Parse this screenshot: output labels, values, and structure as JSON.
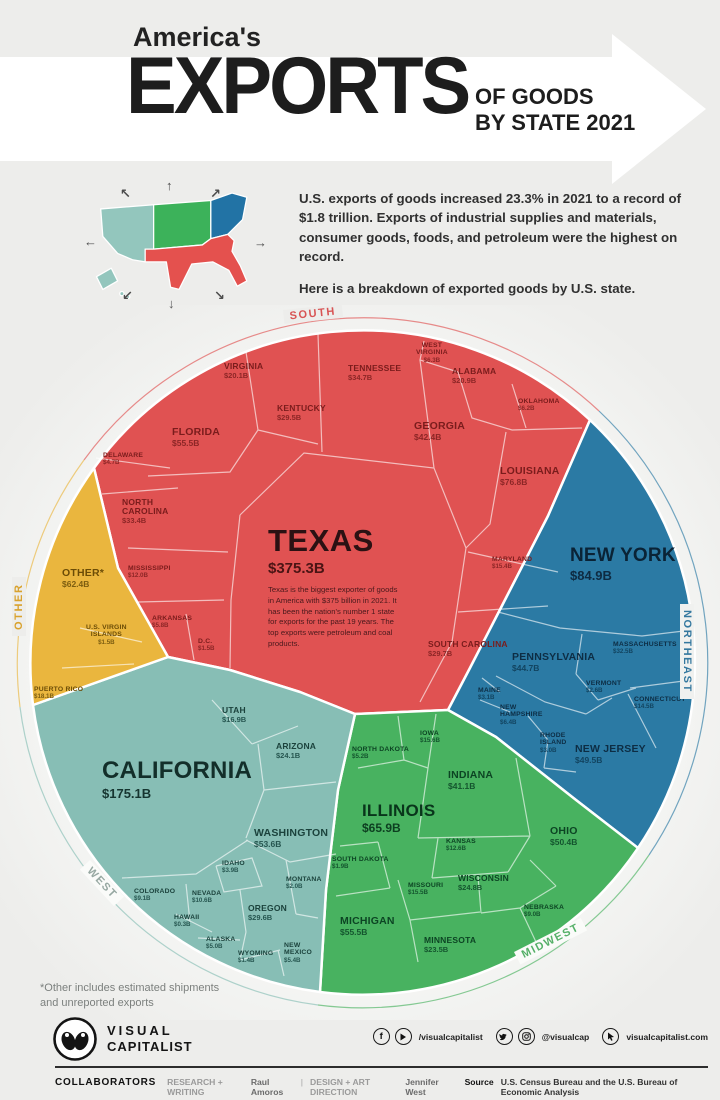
{
  "header": {
    "kicker": "America's",
    "title": "EXPORTS",
    "subtitle_line1": "OF GOODS",
    "subtitle_line2": "BY STATE 2021"
  },
  "intro": {
    "paragraph1": "U.S. exports of goods increased 23.3% in 2021 to a record of $1.8 trillion. Exports of industrial supplies and materials, consumer goods, foods, and petroleum were the highest on record.",
    "paragraph2": "Here is a breakdown of exported goods by U.S. state."
  },
  "chart_data": {
    "type": "pie",
    "variant": "circular voronoi treemap",
    "title": "America's Exports of Goods by State 2021",
    "unit": "USD billions",
    "total_label": "$1.8 trillion",
    "regions": [
      {
        "name": "SOUTH",
        "color": "#e05252",
        "states": [
          {
            "name": "TEXAS",
            "value": "$375.3B",
            "value_b": 375.3,
            "note": "Texas is the biggest exporter of goods in America with $375 billion in 2021. It has been the nation's number 1 state for exports for the past 19 years. The top exports were petroleum and coal products."
          },
          {
            "name": "LOUISIANA",
            "value": "$76.8B",
            "value_b": 76.8
          },
          {
            "name": "FLORIDA",
            "value": "$55.5B",
            "value_b": 55.5
          },
          {
            "name": "GEORGIA",
            "value": "$42.4B",
            "value_b": 42.4
          },
          {
            "name": "TENNESSEE",
            "value": "$34.7B",
            "value_b": 34.7
          },
          {
            "name": "NORTH CAROLINA",
            "value": "$33.4B",
            "value_b": 33.4
          },
          {
            "name": "SOUTH CAROLINA",
            "value": "$29.7B",
            "value_b": 29.7
          },
          {
            "name": "KENTUCKY",
            "value": "$29.5B",
            "value_b": 29.5
          },
          {
            "name": "ALABAMA",
            "value": "$20.9B",
            "value_b": 20.9
          },
          {
            "name": "VIRGINIA",
            "value": "$20.1B",
            "value_b": 20.1
          },
          {
            "name": "MARYLAND",
            "value": "$15.4B",
            "value_b": 15.4
          },
          {
            "name": "MISSISSIPPI",
            "value": "$12.0B",
            "value_b": 12.0
          },
          {
            "name": "WEST VIRGINIA",
            "value": "$6.3B",
            "value_b": 6.3
          },
          {
            "name": "OKLAHOMA",
            "value": "$6.2B",
            "value_b": 6.2
          },
          {
            "name": "ARKANSAS",
            "value": "$5.8B",
            "value_b": 5.8
          },
          {
            "name": "DELAWARE",
            "value": "$4.7B",
            "value_b": 4.7
          },
          {
            "name": "D.C.",
            "value": "$1.5B",
            "value_b": 1.5
          }
        ]
      },
      {
        "name": "NORTHEAST",
        "color": "#2b7aa4",
        "states": [
          {
            "name": "NEW YORK",
            "value": "$84.9B",
            "value_b": 84.9
          },
          {
            "name": "NEW JERSEY",
            "value": "$49.5B",
            "value_b": 49.5
          },
          {
            "name": "PENNSYLVANIA",
            "value": "$44.7B",
            "value_b": 44.7
          },
          {
            "name": "MASSACHUSETTS",
            "value": "$32.5B",
            "value_b": 32.5
          },
          {
            "name": "CONNECTICUT",
            "value": "$14.5B",
            "value_b": 14.5
          },
          {
            "name": "NEW HAMPSHIRE",
            "value": "$6.4B",
            "value_b": 6.4
          },
          {
            "name": "MAINE",
            "value": "$3.1B",
            "value_b": 3.1
          },
          {
            "name": "RHODE ISLAND",
            "value": "$3.0B",
            "value_b": 3.0
          },
          {
            "name": "VERMONT",
            "value": "$2.6B",
            "value_b": 2.6
          }
        ]
      },
      {
        "name": "MIDWEST",
        "color": "#48b260",
        "states": [
          {
            "name": "ILLINOIS",
            "value": "$65.9B",
            "value_b": 65.9
          },
          {
            "name": "MICHIGAN",
            "value": "$55.5B",
            "value_b": 55.5
          },
          {
            "name": "OHIO",
            "value": "$50.4B",
            "value_b": 50.4
          },
          {
            "name": "INDIANA",
            "value": "$41.1B",
            "value_b": 41.1
          },
          {
            "name": "WISCONSIN",
            "value": "$24.8B",
            "value_b": 24.8
          },
          {
            "name": "MINNESOTA",
            "value": "$23.5B",
            "value_b": 23.5
          },
          {
            "name": "IOWA",
            "value": "$15.6B",
            "value_b": 15.6
          },
          {
            "name": "MISSOURI",
            "value": "$15.5B",
            "value_b": 15.5
          },
          {
            "name": "KANSAS",
            "value": "$12.6B",
            "value_b": 12.6
          },
          {
            "name": "NEBRASKA",
            "value": "$9.0B",
            "value_b": 9.0
          },
          {
            "name": "NORTH DAKOTA",
            "value": "$5.2B",
            "value_b": 5.2
          },
          {
            "name": "SOUTH DAKOTA",
            "value": "$1.9B",
            "value_b": 1.9
          }
        ]
      },
      {
        "name": "WEST",
        "color": "#87beb5",
        "states": [
          {
            "name": "CALIFORNIA",
            "value": "$175.1B",
            "value_b": 175.1
          },
          {
            "name": "WASHINGTON",
            "value": "$53.6B",
            "value_b": 53.6
          },
          {
            "name": "OREGON",
            "value": "$29.6B",
            "value_b": 29.6
          },
          {
            "name": "ARIZONA",
            "value": "$24.1B",
            "value_b": 24.1
          },
          {
            "name": "UTAH",
            "value": "$16.9B",
            "value_b": 16.9
          },
          {
            "name": "NEVADA",
            "value": "$10.6B",
            "value_b": 10.6
          },
          {
            "name": "COLORADO",
            "value": "$9.1B",
            "value_b": 9.1
          },
          {
            "name": "NEW MEXICO",
            "value": "$5.4B",
            "value_b": 5.4
          },
          {
            "name": "ALASKA",
            "value": "$5.0B",
            "value_b": 5.0
          },
          {
            "name": "IDAHO",
            "value": "$3.9B",
            "value_b": 3.9
          },
          {
            "name": "MONTANA",
            "value": "$2.0B",
            "value_b": 2.0
          },
          {
            "name": "WYOMING",
            "value": "$1.4B",
            "value_b": 1.4
          },
          {
            "name": "HAWAII",
            "value": "$0.3B",
            "value_b": 0.3
          }
        ]
      },
      {
        "name": "OTHER",
        "color": "#eab63e",
        "states": [
          {
            "name": "OTHER*",
            "value": "$62.4B",
            "value_b": 62.4
          },
          {
            "name": "PUERTO RICO",
            "value": "$18.1B",
            "value_b": 18.1
          },
          {
            "name": "U.S. VIRGIN ISLANDS",
            "value": "$1.5B",
            "value_b": 1.5
          }
        ]
      }
    ]
  },
  "footnote": "*Other includes estimated shipments and unreported exports",
  "footer": {
    "brand_line1": "VISUAL",
    "brand_line2": "CAPITALIST",
    "social_handle": "/visualcapitalist",
    "social_handle2": "@visualcap",
    "website": "visualcapitalist.com",
    "collaborators_label": "COLLABORATORS",
    "research_label": "RESEARCH + WRITING",
    "research_name": "Raul Amoros",
    "pipe": "|",
    "design_label": "DESIGN + ART DIRECTION",
    "design_name": "Jennifer West",
    "source_label": "Source",
    "source_text": "U.S. Census Bureau and the U.S. Bureau of Economic Analysis"
  },
  "colors": {
    "south": "#e05252",
    "northeast": "#2b7aa4",
    "midwest": "#48b260",
    "west": "#87beb5",
    "other": "#eab63e",
    "background": "#ededeb"
  }
}
